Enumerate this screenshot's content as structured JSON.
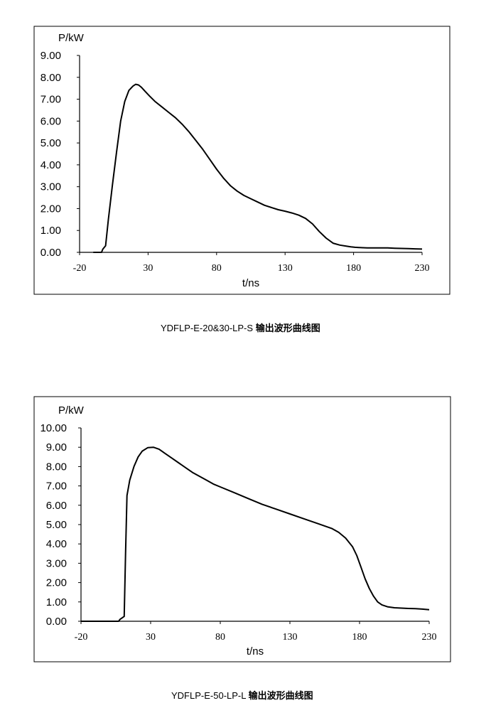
{
  "chart_data": [
    {
      "type": "line",
      "ylabel": "P/kW",
      "xlabel": "t/ns",
      "xlim": [
        -20,
        230
      ],
      "ylim": [
        0,
        9
      ],
      "xticks": [
        "-20",
        "30",
        "80",
        "130",
        "180",
        "230"
      ],
      "yticks": [
        "0.00",
        "1.00",
        "2.00",
        "3.00",
        "4.00",
        "5.00",
        "6.00",
        "7.00",
        "8.00",
        "9.00"
      ],
      "legend": "none",
      "grid": false,
      "series": [
        {
          "color": "#000000",
          "x": [
            -10,
            -4,
            -3,
            -1,
            1,
            4,
            7,
            10,
            13,
            16,
            19,
            21,
            23,
            25,
            28,
            31,
            35,
            40,
            45,
            50,
            55,
            60,
            65,
            70,
            75,
            80,
            85,
            90,
            95,
            100,
            105,
            110,
            115,
            120,
            125,
            130,
            135,
            140,
            145,
            150,
            155,
            160,
            165,
            170,
            175,
            178,
            181,
            184,
            187,
            190,
            195,
            200,
            205,
            210,
            215,
            220,
            225,
            230
          ],
          "y": [
            0,
            0,
            0.15,
            0.3,
            1.5,
            3.1,
            4.6,
            6.0,
            6.9,
            7.4,
            7.6,
            7.68,
            7.65,
            7.55,
            7.35,
            7.15,
            6.9,
            6.65,
            6.4,
            6.15,
            5.85,
            5.5,
            5.1,
            4.7,
            4.25,
            3.8,
            3.4,
            3.05,
            2.8,
            2.6,
            2.45,
            2.3,
            2.15,
            2.05,
            1.95,
            1.88,
            1.8,
            1.7,
            1.55,
            1.3,
            0.95,
            0.65,
            0.42,
            0.33,
            0.28,
            0.25,
            0.23,
            0.22,
            0.21,
            0.2,
            0.2,
            0.2,
            0.2,
            0.19,
            0.18,
            0.17,
            0.16,
            0.15
          ]
        }
      ],
      "caption_latin": "YDFLP-E-20&30-LP-S",
      "caption_cjk": "输出波形曲线图"
    },
    {
      "type": "line",
      "ylabel": "P/kW",
      "xlabel": "t/ns",
      "xlim": [
        -20,
        230
      ],
      "ylim": [
        0,
        10
      ],
      "xticks": [
        "-20",
        "30",
        "80",
        "130",
        "180",
        "230"
      ],
      "yticks": [
        "0.00",
        "1.00",
        "2.00",
        "3.00",
        "4.00",
        "5.00",
        "6.00",
        "7.00",
        "8.00",
        "9.00",
        "10.00"
      ],
      "legend": "none",
      "grid": false,
      "series": [
        {
          "color": "#000000",
          "x": [
            -20,
            -10,
            0,
            7,
            8,
            11,
            12,
            13,
            15,
            18,
            21,
            24,
            28,
            32,
            36,
            40,
            45,
            50,
            55,
            60,
            65,
            70,
            75,
            80,
            90,
            100,
            110,
            120,
            130,
            140,
            150,
            160,
            165,
            170,
            175,
            178,
            181,
            184,
            187,
            190,
            193,
            196,
            200,
            205,
            210,
            215,
            220,
            225,
            230
          ],
          "y": [
            0,
            0,
            0,
            0,
            0.1,
            0.25,
            3.5,
            6.5,
            7.3,
            8.0,
            8.5,
            8.8,
            8.98,
            9.0,
            8.9,
            8.7,
            8.45,
            8.2,
            7.95,
            7.7,
            7.5,
            7.3,
            7.1,
            6.95,
            6.65,
            6.35,
            6.05,
            5.8,
            5.55,
            5.3,
            5.05,
            4.8,
            4.6,
            4.3,
            3.85,
            3.4,
            2.8,
            2.2,
            1.7,
            1.3,
            1.0,
            0.85,
            0.75,
            0.7,
            0.68,
            0.66,
            0.65,
            0.63,
            0.6
          ]
        }
      ],
      "caption_latin": "YDFLP-E-50-LP-L",
      "caption_cjk": "输出波形曲线图"
    }
  ]
}
